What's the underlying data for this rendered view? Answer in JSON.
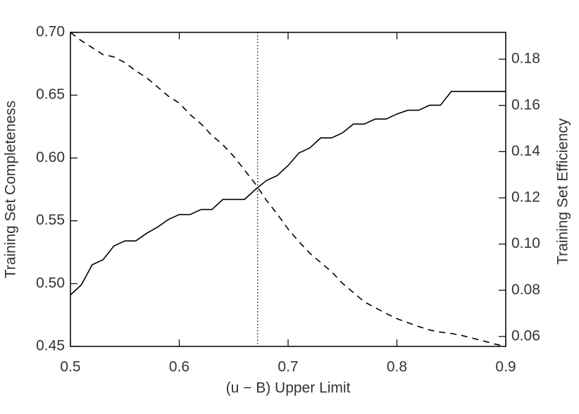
{
  "chart_data": {
    "type": "line",
    "xlabel": "(u − B) Upper Limit",
    "ylabel": "Training Set Completeness",
    "y2label": "Training Set Efficiency",
    "x": [
      0.5,
      0.51,
      0.52,
      0.53,
      0.54,
      0.55,
      0.56,
      0.57,
      0.58,
      0.59,
      0.6,
      0.61,
      0.62,
      0.63,
      0.64,
      0.65,
      0.66,
      0.67,
      0.68,
      0.69,
      0.7,
      0.71,
      0.72,
      0.73,
      0.74,
      0.75,
      0.76,
      0.77,
      0.78,
      0.79,
      0.8,
      0.81,
      0.82,
      0.83,
      0.84,
      0.85,
      0.86,
      0.87,
      0.88,
      0.89,
      0.9
    ],
    "series": [
      {
        "color": "#000000",
        "dash": "solid",
        "axis": "y",
        "values": [
          0.491,
          0.499,
          0.515,
          0.519,
          0.53,
          0.534,
          0.534,
          0.54,
          0.545,
          0.551,
          0.555,
          0.555,
          0.559,
          0.559,
          0.567,
          0.567,
          0.567,
          0.575,
          0.582,
          0.586,
          0.594,
          0.604,
          0.608,
          0.616,
          0.616,
          0.62,
          0.627,
          0.627,
          0.631,
          0.631,
          0.635,
          0.638,
          0.638,
          0.642,
          0.642,
          0.653,
          0.653,
          0.653,
          0.653,
          0.653,
          0.653
        ]
      },
      {
        "color": "#000000",
        "dash": "dashed",
        "axis": "y2",
        "values": [
          0.1916,
          0.188,
          0.185,
          0.182,
          0.181,
          0.1785,
          0.175,
          0.172,
          0.168,
          0.164,
          0.161,
          0.156,
          0.152,
          0.147,
          0.143,
          0.138,
          0.132,
          0.126,
          0.119,
          0.113,
          0.1065,
          0.101,
          0.096,
          0.092,
          0.088,
          0.083,
          0.079,
          0.075,
          0.0725,
          0.07,
          0.0677,
          0.066,
          0.0643,
          0.0628,
          0.0619,
          0.0613,
          0.0604,
          0.0592,
          0.058,
          0.0567,
          0.0557
        ]
      }
    ],
    "vline": 0.672,
    "xlim": [
      0.5,
      0.9
    ],
    "xticks": [
      0.5,
      0.6,
      0.7,
      0.8,
      0.9
    ],
    "ylim": [
      0.45,
      0.7
    ],
    "yticks": [
      {
        "value": 0.45,
        "label": "0.45"
      },
      {
        "value": 0.5,
        "label": "0.50"
      },
      0.55,
      {
        "value": 0.6,
        "label": "0.60"
      },
      0.65,
      {
        "value": 0.7,
        "label": "0.70"
      }
    ],
    "y2lim": [
      0.0557,
      0.1916
    ],
    "y2ticks": [
      0.06,
      0.08,
      {
        "value": 0.1,
        "label": "0.10"
      },
      0.12,
      0.14,
      0.16,
      0.18
    ]
  }
}
